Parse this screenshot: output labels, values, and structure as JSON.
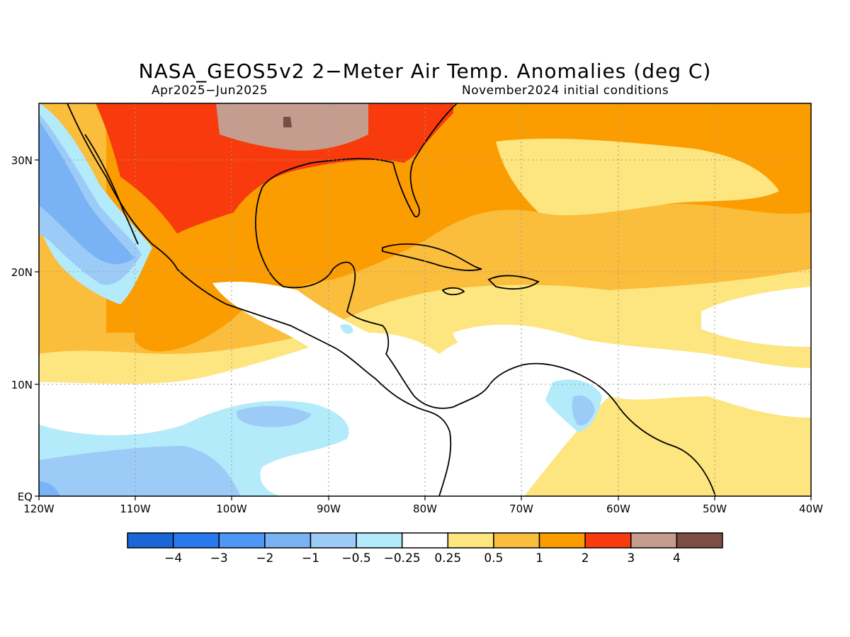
{
  "title": "NASA_GEOS5v2 2−Meter Air Temp. Anomalies (deg C)",
  "period": "Apr2025−Jun2025",
  "init": "November2024 initial conditions",
  "axes": {
    "lat_ticks": [
      "30N",
      "20N",
      "10N",
      "EQ"
    ],
    "lon_ticks": [
      "120W",
      "110W",
      "100W",
      "90W",
      "80W",
      "70W",
      "60W",
      "50W",
      "40W"
    ]
  },
  "colorbar": {
    "labels": [
      "−4",
      "−3",
      "−2",
      "−1",
      "−0.5",
      "−0.25",
      "0.25",
      "0.5",
      "1",
      "2",
      "3",
      "4"
    ],
    "colors": [
      "#1a66d6",
      "#2a78ee",
      "#4d97f5",
      "#79b3f5",
      "#9dcbf8",
      "#b3ebfa",
      "#ffffff",
      "#fde57f",
      "#fbbd3c",
      "#fb9d00",
      "#f83a0c",
      "#c59d8f",
      "#7c4d45"
    ]
  },
  "palette": {
    "frame": "#000000",
    "grid": "#9a9a9a"
  }
}
